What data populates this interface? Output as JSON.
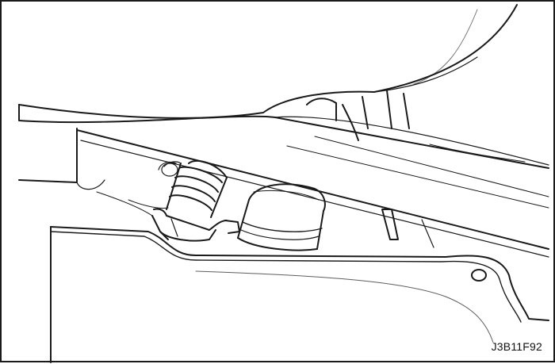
{
  "figure": {
    "code": "J3B11F92"
  },
  "colors": {
    "line": "#1a1a1a",
    "paper": "#ffffff",
    "shade": "#f0f0f0"
  },
  "parts": {
    "drawing_icon": "line-art-illustration",
    "items": [
      "fuel-tank",
      "cross-member-bar",
      "corrugated-hose",
      "hose-clamp",
      "filler-neck",
      "body-panel",
      "mounting-bracket"
    ]
  }
}
